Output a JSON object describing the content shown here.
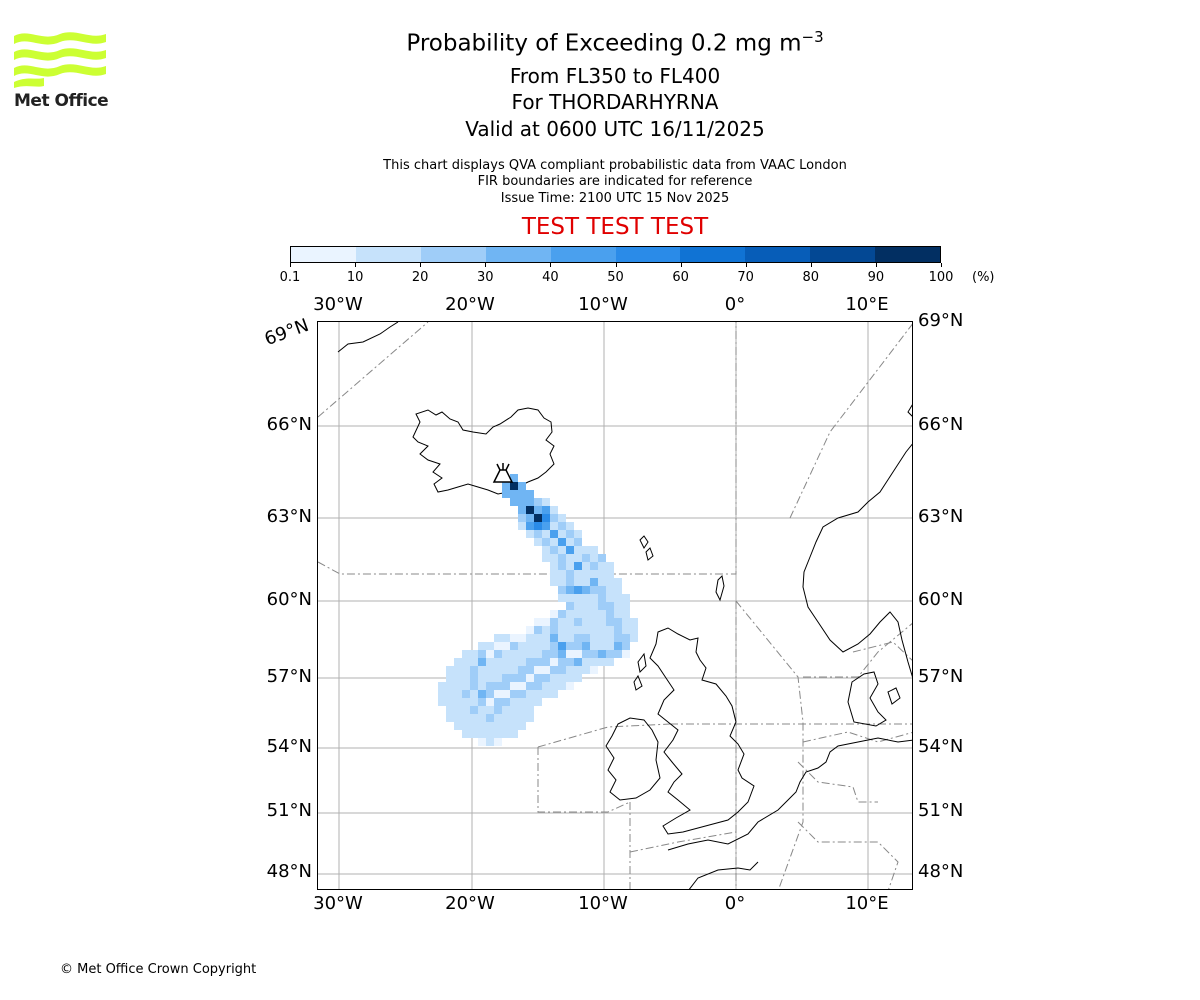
{
  "logo": {
    "name": "Met Office",
    "colors": {
      "waves": "#ccff33",
      "text": "#222222"
    }
  },
  "header": {
    "title_main": "Probability of Exceeding 0.2 mg m",
    "title_sup": "−3",
    "levels": "From FL350 to FL400",
    "volcano": "For THORDARHYRNA",
    "valid": "Valid at 0600 UTC 16/11/2025",
    "info_line1": "This chart displays QVA compliant probabilistic data from VAAC London",
    "info_line2": "FIR boundaries are indicated for reference",
    "issue_time": "Issue Time: 2100 UTC 15 Nov 2025",
    "test_banner": "TEST TEST TEST"
  },
  "colorbar": {
    "ticks": [
      "0.1",
      "10",
      "20",
      "30",
      "40",
      "50",
      "60",
      "70",
      "80",
      "90",
      "100"
    ],
    "unit": "(%)",
    "colors": [
      "#eaf4ff",
      "#c6e2fb",
      "#9fcdf8",
      "#70b5f3",
      "#4aa0ee",
      "#2a8be8",
      "#1073d4",
      "#075db8",
      "#034894",
      "#022f62"
    ]
  },
  "map": {
    "lon_labels": [
      "30°W",
      "20°W",
      "10°W",
      "0°",
      "10°E"
    ],
    "lat_labels": [
      "69°N",
      "66°N",
      "63°N",
      "60°N",
      "57°N",
      "54°N",
      "51°N",
      "48°N"
    ],
    "volcano_icon": "volcano-icon"
  },
  "footer": {
    "copyright": "© Met Office Crown Copyright"
  }
}
